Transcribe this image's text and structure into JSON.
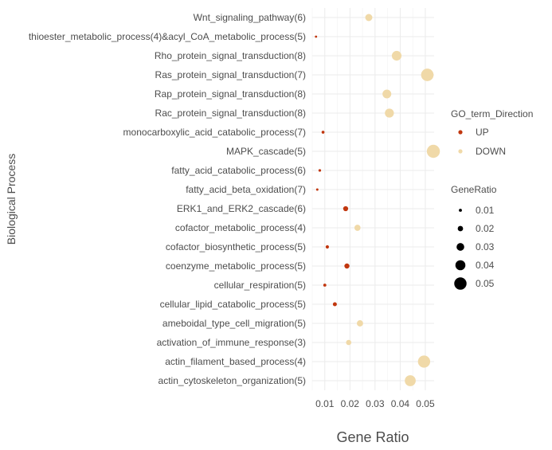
{
  "chart_data": {
    "type": "scatter",
    "title": "",
    "xlabel": "Gene Ratio",
    "ylabel": "Biological Process",
    "xlim": [
      0.005,
      0.0535
    ],
    "x_ticks": [
      0.01,
      0.02,
      0.03,
      0.04,
      0.05
    ],
    "x_tick_labels": [
      "0.01",
      "0.02",
      "0.03",
      "0.04",
      "0.05"
    ],
    "grid": true,
    "legend_position": "right",
    "color_legend": {
      "title": "GO_term_Direction",
      "entries": [
        {
          "label": "UP",
          "color": "#c1370f"
        },
        {
          "label": "DOWN",
          "color": "#f0d9a8"
        }
      ]
    },
    "size_legend": {
      "title": "GeneRatio",
      "entries": [
        {
          "label": "0.01",
          "value": 0.01
        },
        {
          "label": "0.02",
          "value": 0.02
        },
        {
          "label": "0.03",
          "value": 0.03
        },
        {
          "label": "0.04",
          "value": 0.04
        },
        {
          "label": "0.05",
          "value": 0.05
        }
      ]
    },
    "categories": [
      "Wnt_signaling_pathway(6)",
      "thioester_metabolic_process(4)&acyl_CoA_metabolic_process(5)",
      "Rho_protein_signal_transduction(8)",
      "Ras_protein_signal_transduction(7)",
      "Rap_protein_signal_transduction(8)",
      "Rac_protein_signal_transduction(8)",
      "monocarboxylic_acid_catabolic_process(7)",
      "MAPK_cascade(5)",
      "fatty_acid_catabolic_process(6)",
      "fatty_acid_beta_oxidation(7)",
      "ERK1_and_ERK2_cascade(6)",
      "cofactor_metabolic_process(4)",
      "cofactor_biosynthetic_process(5)",
      "coenzyme_metabolic_process(5)",
      "cellular_respiration(5)",
      "cellular_lipid_catabolic_process(5)",
      "ameboidal_type_cell_migration(5)",
      "activation_of_immune_response(3)",
      "actin_filament_based_process(4)",
      "actin_cytoskeleton_organization(5)"
    ],
    "points": [
      {
        "category": "Wnt_signaling_pathway(6)",
        "x": 0.0275,
        "direction": "DOWN"
      },
      {
        "category": "thioester_metabolic_process(4)&acyl_CoA_metabolic_process(5)",
        "x": 0.0065,
        "direction": "UP"
      },
      {
        "category": "Rho_protein_signal_transduction(8)",
        "x": 0.0386,
        "direction": "DOWN"
      },
      {
        "category": "Ras_protein_signal_transduction(7)",
        "x": 0.0508,
        "direction": "DOWN"
      },
      {
        "category": "Rap_protein_signal_transduction(8)",
        "x": 0.0347,
        "direction": "DOWN"
      },
      {
        "category": "Rac_protein_signal_transduction(8)",
        "x": 0.0357,
        "direction": "DOWN"
      },
      {
        "category": "monocarboxylic_acid_catabolic_process(7)",
        "x": 0.0093,
        "direction": "UP"
      },
      {
        "category": "MAPK_cascade(5)",
        "x": 0.0532,
        "direction": "DOWN"
      },
      {
        "category": "fatty_acid_catabolic_process(6)",
        "x": 0.008,
        "direction": "UP"
      },
      {
        "category": "fatty_acid_beta_oxidation(7)",
        "x": 0.007,
        "direction": "UP"
      },
      {
        "category": "ERK1_and_ERK2_cascade(6)",
        "x": 0.0183,
        "direction": "UP"
      },
      {
        "category": "cofactor_metabolic_process(4)",
        "x": 0.023,
        "direction": "DOWN"
      },
      {
        "category": "cofactor_biosynthetic_process(5)",
        "x": 0.011,
        "direction": "UP"
      },
      {
        "category": "coenzyme_metabolic_process(5)",
        "x": 0.0188,
        "direction": "UP"
      },
      {
        "category": "cellular_respiration(5)",
        "x": 0.01,
        "direction": "UP"
      },
      {
        "category": "cellular_lipid_catabolic_process(5)",
        "x": 0.014,
        "direction": "UP"
      },
      {
        "category": "ameboidal_type_cell_migration(5)",
        "x": 0.024,
        "direction": "DOWN"
      },
      {
        "category": "activation_of_immune_response(3)",
        "x": 0.0195,
        "direction": "DOWN"
      },
      {
        "category": "actin_filament_based_process(4)",
        "x": 0.0495,
        "direction": "DOWN"
      },
      {
        "category": "actin_cytoskeleton_organization(5)",
        "x": 0.044,
        "direction": "DOWN"
      }
    ]
  }
}
